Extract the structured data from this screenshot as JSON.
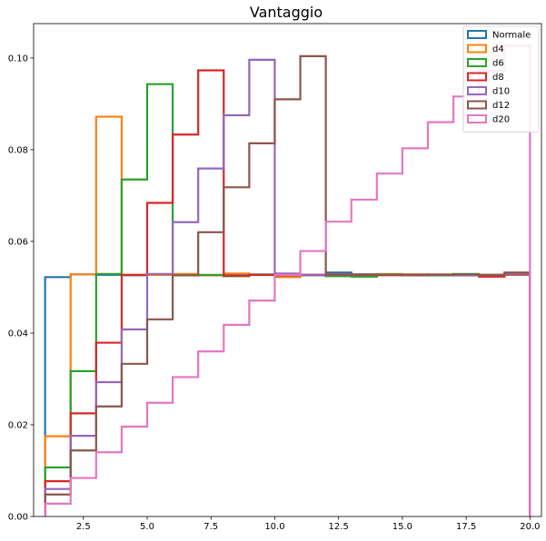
{
  "chart_data": {
    "type": "step-histogram",
    "title": "Vantaggio",
    "xlabel": "",
    "ylabel": "",
    "xlim": [
      0.55,
      20.45
    ],
    "ylim": [
      0,
      0.1075
    ],
    "xticks": [
      2.5,
      5.0,
      7.5,
      10.0,
      12.5,
      15.0,
      17.5,
      20.0
    ],
    "xtick_labels": [
      "2.5",
      "5.0",
      "7.5",
      "10.0",
      "12.5",
      "15.0",
      "17.5",
      "20.0"
    ],
    "yticks": [
      0.0,
      0.02,
      0.04,
      0.06,
      0.08,
      0.1
    ],
    "ytick_labels": [
      "0.00",
      "0.02",
      "0.04",
      "0.06",
      "0.08",
      "0.10"
    ],
    "bin_edges": [
      1,
      2,
      3,
      4,
      5,
      6,
      7,
      8,
      9,
      10,
      11,
      12,
      13,
      14,
      15,
      16,
      17,
      18,
      19,
      20
    ],
    "grid": false,
    "legend_position": "top-right",
    "series": [
      {
        "name": "Normale",
        "color": "#1f77b4",
        "values": [
          0.0522,
          0.0528,
          0.0527,
          0.0526,
          0.0527,
          0.0527,
          0.0526,
          0.0527,
          0.0528,
          0.0526,
          0.0527,
          0.0532,
          0.0528,
          0.0527,
          0.0528,
          0.0526,
          0.0527,
          0.0526,
          0.0527
        ]
      },
      {
        "name": "d4",
        "color": "#ff7f0e",
        "values": [
          0.0175,
          0.0528,
          0.0872,
          0.0527,
          0.0527,
          0.0529,
          0.0526,
          0.053,
          0.0527,
          0.0522,
          0.0526,
          0.0528,
          0.0527,
          0.0529,
          0.0528,
          0.0527,
          0.0526,
          0.0527,
          0.0527
        ]
      },
      {
        "name": "d6",
        "color": "#2ca02c",
        "values": [
          0.0107,
          0.0317,
          0.0529,
          0.0735,
          0.0943,
          0.0526,
          0.0527,
          0.0524,
          0.0527,
          0.0528,
          0.0526,
          0.0524,
          0.0523,
          0.0528,
          0.0527,
          0.0526,
          0.0529,
          0.0527,
          0.0528
        ]
      },
      {
        "name": "d8",
        "color": "#d62728",
        "values": [
          0.0077,
          0.0225,
          0.0379,
          0.0527,
          0.0684,
          0.0833,
          0.0973,
          0.0525,
          0.0527,
          0.0526,
          0.0527,
          0.0528,
          0.0527,
          0.0526,
          0.0527,
          0.0528,
          0.0526,
          0.0523,
          0.0528
        ]
      },
      {
        "name": "d10",
        "color": "#9467bd",
        "values": [
          0.006,
          0.0176,
          0.0293,
          0.0408,
          0.0529,
          0.0642,
          0.0759,
          0.0875,
          0.0996,
          0.053,
          0.0526,
          0.0527,
          0.0528,
          0.0527,
          0.0526,
          0.0527,
          0.0526,
          0.0527,
          0.0529
        ]
      },
      {
        "name": "d12",
        "color": "#8c564b",
        "values": [
          0.0048,
          0.0144,
          0.024,
          0.0333,
          0.043,
          0.0526,
          0.062,
          0.0718,
          0.0814,
          0.091,
          0.1004,
          0.0527,
          0.0528,
          0.0527,
          0.0526,
          0.0527,
          0.0528,
          0.0527,
          0.0532
        ]
      },
      {
        "name": "d20",
        "color": "#e377c2",
        "values": [
          0.0028,
          0.0084,
          0.014,
          0.0196,
          0.0248,
          0.0304,
          0.036,
          0.0418,
          0.0471,
          0.0527,
          0.0579,
          0.0643,
          0.0691,
          0.0748,
          0.0803,
          0.086,
          0.0916,
          0.0972,
          0.1027
        ]
      }
    ]
  }
}
